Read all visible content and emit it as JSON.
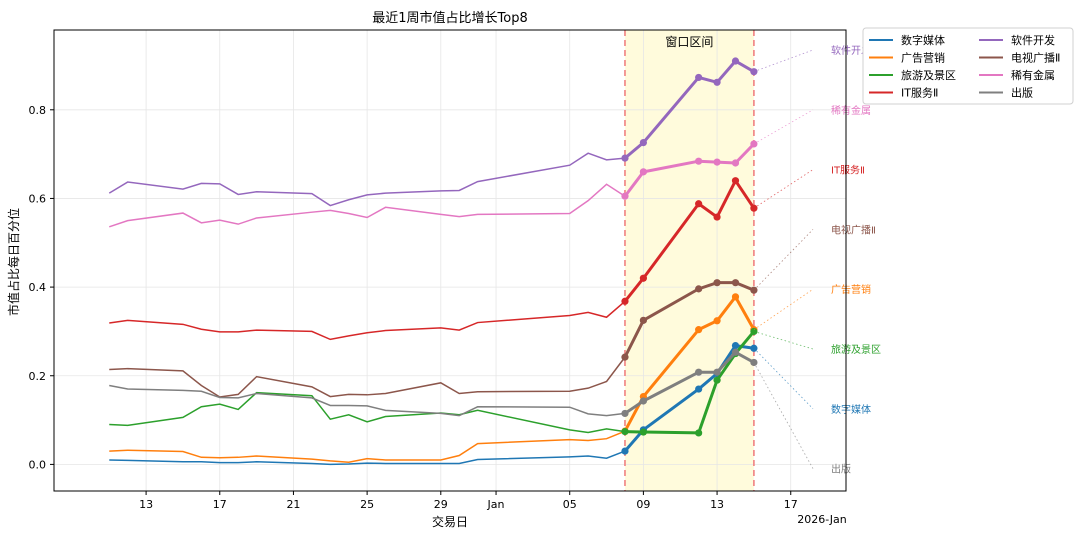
{
  "chart_data": {
    "type": "line",
    "title": "最近1周市值占比增长Top8",
    "xlabel": "交易日",
    "ylabel": "市值占比每日百分位",
    "ylim": [
      -0.06,
      0.98
    ],
    "xlim": [
      "2025-12-08",
      "2026-01-20"
    ],
    "x_ticks": [
      {
        "date": "2025-12-13",
        "label": "13"
      },
      {
        "date": "2025-12-17",
        "label": "17"
      },
      {
        "date": "2025-12-21",
        "label": "21"
      },
      {
        "date": "2025-12-25",
        "label": "25"
      },
      {
        "date": "2025-12-29",
        "label": "29"
      },
      {
        "date": "2026-01-01",
        "label": "Jan"
      },
      {
        "date": "2026-01-05",
        "label": "05"
      },
      {
        "date": "2026-01-09",
        "label": "09"
      },
      {
        "date": "2026-01-13",
        "label": "13"
      },
      {
        "date": "2026-01-17",
        "label": "17"
      }
    ],
    "x_offset_label": "2026-Jan",
    "y_ticks": [
      0.0,
      0.2,
      0.4,
      0.6,
      0.8
    ],
    "y_tick_labels": [
      "0.0",
      "0.2",
      "0.4",
      "0.6",
      "0.8"
    ],
    "grid": true,
    "legend_position": "outside-top-right",
    "window": {
      "label": "窗口区间",
      "start": "2026-01-08",
      "end": "2026-01-15",
      "fill": "#fffbdc",
      "line_color": "#f08080"
    },
    "dates": [
      "2025-12-11",
      "2025-12-12",
      "2025-12-15",
      "2025-12-16",
      "2025-12-17",
      "2025-12-18",
      "2025-12-19",
      "2025-12-22",
      "2025-12-23",
      "2025-12-24",
      "2025-12-25",
      "2025-12-26",
      "2025-12-29",
      "2025-12-30",
      "2025-12-31",
      "2026-01-05",
      "2026-01-06",
      "2026-01-07",
      "2026-01-08",
      "2026-01-09",
      "2026-01-12",
      "2026-01-13",
      "2026-01-14",
      "2026-01-15"
    ],
    "series": [
      {
        "name": "数字媒体",
        "color": "#1f77b4",
        "values": [
          0.01,
          0.009,
          0.006,
          0.006,
          0.004,
          0.004,
          0.006,
          0.002,
          0.0,
          0.001,
          0.003,
          0.002,
          0.002,
          0.002,
          0.011,
          0.017,
          0.019,
          0.014,
          0.03,
          0.078,
          0.17,
          0.205,
          0.268,
          0.262
        ]
      },
      {
        "name": "广告营销",
        "color": "#ff7f0e",
        "values": [
          0.03,
          0.032,
          0.029,
          0.016,
          0.015,
          0.016,
          0.019,
          0.012,
          0.008,
          0.005,
          0.013,
          0.01,
          0.01,
          0.02,
          0.047,
          0.056,
          0.054,
          0.058,
          0.075,
          0.153,
          0.304,
          0.324,
          0.378,
          0.304
        ]
      },
      {
        "name": "旅游及景区",
        "color": "#2ca02c",
        "values": [
          0.09,
          0.088,
          0.106,
          0.13,
          0.136,
          0.124,
          0.162,
          0.155,
          0.102,
          0.112,
          0.096,
          0.108,
          0.116,
          0.112,
          0.122,
          0.078,
          0.072,
          0.08,
          0.074,
          0.073,
          0.071,
          0.19,
          0.25,
          0.3
        ]
      },
      {
        "name": "IT服务Ⅱ",
        "color": "#d62728",
        "values": [
          0.319,
          0.325,
          0.316,
          0.305,
          0.299,
          0.299,
          0.303,
          0.3,
          0.282,
          0.29,
          0.297,
          0.302,
          0.308,
          0.303,
          0.32,
          0.336,
          0.343,
          0.332,
          0.368,
          0.42,
          0.588,
          0.558,
          0.64,
          0.578
        ]
      },
      {
        "name": "软件开发",
        "color": "#9467bd",
        "values": [
          0.612,
          0.637,
          0.621,
          0.634,
          0.633,
          0.609,
          0.615,
          0.611,
          0.584,
          0.597,
          0.608,
          0.612,
          0.617,
          0.618,
          0.638,
          0.675,
          0.702,
          0.687,
          0.691,
          0.726,
          0.873,
          0.862,
          0.91,
          0.886
        ]
      },
      {
        "name": "电视广播Ⅱ",
        "color": "#8c564b",
        "values": [
          0.214,
          0.216,
          0.211,
          0.178,
          0.152,
          0.158,
          0.198,
          0.175,
          0.153,
          0.158,
          0.157,
          0.16,
          0.184,
          0.16,
          0.164,
          0.165,
          0.172,
          0.187,
          0.242,
          0.325,
          0.396,
          0.41,
          0.41,
          0.393
        ]
      },
      {
        "name": "稀有金属",
        "color": "#e377c2",
        "values": [
          0.536,
          0.55,
          0.567,
          0.545,
          0.551,
          0.542,
          0.556,
          0.569,
          0.573,
          0.566,
          0.557,
          0.58,
          0.564,
          0.559,
          0.564,
          0.566,
          0.595,
          0.632,
          0.605,
          0.66,
          0.684,
          0.682,
          0.68,
          0.723
        ]
      },
      {
        "name": "出版",
        "color": "#7f7f7f",
        "values": [
          0.178,
          0.17,
          0.167,
          0.165,
          0.151,
          0.15,
          0.16,
          0.15,
          0.133,
          0.133,
          0.132,
          0.122,
          0.115,
          0.11,
          0.13,
          0.129,
          0.114,
          0.11,
          0.115,
          0.143,
          0.208,
          0.208,
          0.253,
          0.23
        ]
      }
    ],
    "end_labels_order": [
      "软件开发",
      "稀有金属",
      "IT服务Ⅱ",
      "电视广播Ⅱ",
      "广告营销",
      "旅游及景区",
      "数字媒体",
      "出版"
    ]
  }
}
